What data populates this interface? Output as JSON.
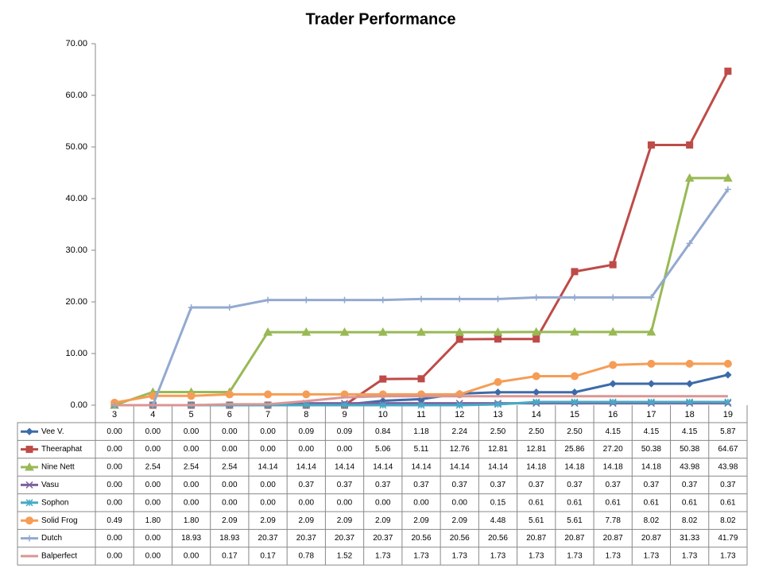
{
  "chart_data": {
    "type": "line",
    "title": "Trader Performance",
    "categories": [
      "3",
      "4",
      "5",
      "6",
      "7",
      "8",
      "9",
      "10",
      "11",
      "12",
      "13",
      "14",
      "15",
      "16",
      "17",
      "18",
      "19"
    ],
    "ylim": [
      0,
      70
    ],
    "yticks": [
      {
        "value": 0,
        "label": "0.00"
      },
      {
        "value": 10,
        "label": "10.00"
      },
      {
        "value": 20,
        "label": "20.00"
      },
      {
        "value": 30,
        "label": "30.00"
      },
      {
        "value": 40,
        "label": "40.00"
      },
      {
        "value": 50,
        "label": "50.00"
      },
      {
        "value": 60,
        "label": "60.00"
      },
      {
        "value": 70,
        "label": "70.00"
      }
    ],
    "grid": false,
    "series": [
      {
        "name": "Vee V.",
        "color": "#3d6ba8",
        "marker": "diamond",
        "values": [
          0,
          0,
          0,
          0,
          0,
          0.09,
          0.09,
          0.84,
          1.18,
          2.24,
          2.5,
          2.5,
          2.5,
          4.15,
          4.15,
          4.15,
          5.87
        ],
        "value_labels": [
          "0.00",
          "0.00",
          "0.00",
          "0.00",
          "0.00",
          "0.09",
          "0.09",
          "0.84",
          "1.18",
          "2.24",
          "2.50",
          "2.50",
          "2.50",
          "4.15",
          "4.15",
          "4.15",
          "5.87"
        ]
      },
      {
        "name": "Theeraphat",
        "color": "#be4b48",
        "marker": "square",
        "values": [
          0,
          0,
          0,
          0,
          0,
          0,
          0,
          5.06,
          5.11,
          12.76,
          12.81,
          12.81,
          25.86,
          27.2,
          50.38,
          50.38,
          64.67
        ],
        "value_labels": [
          "0.00",
          "0.00",
          "0.00",
          "0.00",
          "0.00",
          "0.00",
          "0.00",
          "5.06",
          "5.11",
          "12.76",
          "12.81",
          "12.81",
          "25.86",
          "27.20",
          "50.38",
          "50.38",
          "64.67"
        ]
      },
      {
        "name": "Nine Nett",
        "color": "#98b954",
        "marker": "triangle",
        "values": [
          0,
          2.54,
          2.54,
          2.54,
          14.14,
          14.14,
          14.14,
          14.14,
          14.14,
          14.14,
          14.14,
          14.18,
          14.18,
          14.18,
          14.18,
          43.98,
          43.98
        ],
        "value_labels": [
          "0.00",
          "2.54",
          "2.54",
          "2.54",
          "14.14",
          "14.14",
          "14.14",
          "14.14",
          "14.14",
          "14.14",
          "14.14",
          "14.18",
          "14.18",
          "14.18",
          "14.18",
          "43.98",
          "43.98"
        ]
      },
      {
        "name": "Vasu",
        "color": "#7d60a0",
        "marker": "x",
        "values": [
          0,
          0,
          0,
          0,
          0,
          0.37,
          0.37,
          0.37,
          0.37,
          0.37,
          0.37,
          0.37,
          0.37,
          0.37,
          0.37,
          0.37,
          0.37
        ],
        "value_labels": [
          "0.00",
          "0.00",
          "0.00",
          "0.00",
          "0.00",
          "0.37",
          "0.37",
          "0.37",
          "0.37",
          "0.37",
          "0.37",
          "0.37",
          "0.37",
          "0.37",
          "0.37",
          "0.37",
          "0.37"
        ]
      },
      {
        "name": "Sophon",
        "color": "#46aac5",
        "marker": "star",
        "values": [
          0,
          0,
          0,
          0,
          0,
          0,
          0,
          0,
          0,
          0,
          0.15,
          0.61,
          0.61,
          0.61,
          0.61,
          0.61,
          0.61
        ],
        "value_labels": [
          "0.00",
          "0.00",
          "0.00",
          "0.00",
          "0.00",
          "0.00",
          "0.00",
          "0.00",
          "0.00",
          "0.00",
          "0.15",
          "0.61",
          "0.61",
          "0.61",
          "0.61",
          "0.61",
          "0.61"
        ]
      },
      {
        "name": "Solid Frog",
        "color": "#f59d56",
        "marker": "circle",
        "values": [
          0.49,
          1.8,
          1.8,
          2.09,
          2.09,
          2.09,
          2.09,
          2.09,
          2.09,
          2.09,
          4.48,
          5.61,
          5.61,
          7.78,
          8.02,
          8.02,
          8.02
        ],
        "value_labels": [
          "0.49",
          "1.80",
          "1.80",
          "2.09",
          "2.09",
          "2.09",
          "2.09",
          "2.09",
          "2.09",
          "2.09",
          "4.48",
          "5.61",
          "5.61",
          "7.78",
          "8.02",
          "8.02",
          "8.02"
        ]
      },
      {
        "name": "Dutch",
        "color": "#93a9d0",
        "marker": "plus",
        "values": [
          0,
          0,
          18.93,
          18.93,
          20.37,
          20.37,
          20.37,
          20.37,
          20.56,
          20.56,
          20.56,
          20.87,
          20.87,
          20.87,
          20.87,
          31.33,
          41.79
        ],
        "value_labels": [
          "0.00",
          "0.00",
          "18.93",
          "18.93",
          "20.37",
          "20.37",
          "20.37",
          "20.37",
          "20.56",
          "20.56",
          "20.56",
          "20.87",
          "20.87",
          "20.87",
          "20.87",
          "31.33",
          "41.79"
        ]
      },
      {
        "name": "Balperfect",
        "color": "#d99694",
        "marker": "none",
        "values": [
          0,
          0,
          0,
          0.17,
          0.17,
          0.78,
          1.52,
          1.73,
          1.73,
          1.73,
          1.73,
          1.73,
          1.73,
          1.73,
          1.73,
          1.73,
          1.73
        ],
        "value_labels": [
          "0.00",
          "0.00",
          "0.00",
          "0.17",
          "0.17",
          "0.78",
          "1.52",
          "1.73",
          "1.73",
          "1.73",
          "1.73",
          "1.73",
          "1.73",
          "1.73",
          "1.73",
          "1.73",
          "1.73"
        ]
      }
    ]
  }
}
